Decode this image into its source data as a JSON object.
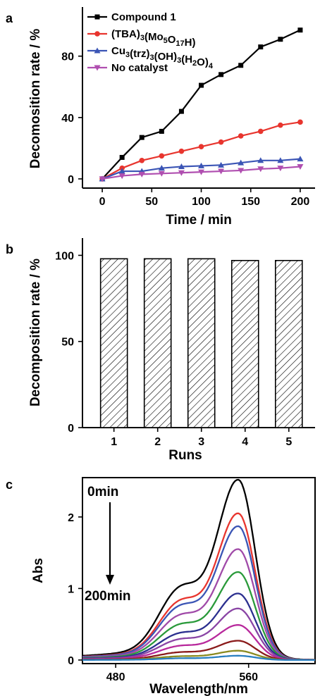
{
  "chart_data": [
    {
      "panel": "a",
      "type": "line",
      "xlabel": "Time / min",
      "ylabel": "Decomosition rate / %",
      "xlim": [
        -20,
        215
      ],
      "ylim": [
        -6,
        112
      ],
      "xticks": [
        0,
        50,
        100,
        150,
        200
      ],
      "yticks": [
        0,
        40,
        80
      ],
      "legend_position": "top-left",
      "series": [
        {
          "name": "Compound 1",
          "color": "#000000",
          "marker": "square",
          "x": [
            0,
            20,
            40,
            60,
            80,
            100,
            120,
            140,
            160,
            180,
            200
          ],
          "y": [
            0,
            14,
            27,
            31,
            44,
            61,
            68,
            74,
            86,
            91,
            97
          ]
        },
        {
          "name": "(TBA)3(Mo5O17H)",
          "color": "#e8352e",
          "marker": "circle",
          "x": [
            0,
            20,
            40,
            60,
            80,
            100,
            120,
            140,
            160,
            180,
            200
          ],
          "y": [
            0,
            7,
            12,
            15,
            18,
            21,
            24,
            28,
            31,
            35,
            37
          ]
        },
        {
          "name": "Cu3(trz)3(OH)3(H2O)4",
          "color": "#3b55b5",
          "marker": "triangle-up",
          "x": [
            0,
            20,
            40,
            60,
            80,
            100,
            120,
            140,
            160,
            180,
            200
          ],
          "y": [
            0,
            5,
            5,
            7,
            8,
            8.5,
            9,
            10.5,
            12,
            12,
            13
          ]
        },
        {
          "name": "No catalyst",
          "color": "#b04fb0",
          "marker": "triangle-down",
          "x": [
            0,
            20,
            40,
            60,
            80,
            100,
            120,
            140,
            160,
            180,
            200
          ],
          "y": [
            0,
            2,
            3,
            3.5,
            4,
            4.5,
            5,
            5.5,
            6.5,
            7,
            8
          ]
        }
      ]
    },
    {
      "panel": "b",
      "type": "bar",
      "xlabel": "Runs",
      "ylabel": "Decomposition rate / %",
      "categories": [
        "1",
        "2",
        "3",
        "4",
        "5"
      ],
      "values": [
        98,
        98,
        98,
        97,
        97
      ],
      "ylim": [
        0,
        110
      ],
      "yticks": [
        0,
        50,
        100
      ],
      "bar_fill": "hatched"
    },
    {
      "panel": "c",
      "type": "line",
      "xlabel": "Wavelength/nm",
      "ylabel": "Abs",
      "xlim": [
        460,
        600
      ],
      "ylim": [
        -0.05,
        2.55
      ],
      "xticks": [
        480,
        560
      ],
      "yticks": [
        0,
        1,
        2
      ],
      "annotations": [
        "0min",
        "200min"
      ],
      "peak_wavelength": 554,
      "shoulder_wavelength": 519,
      "series": [
        {
          "peak": 2.52,
          "color": "#000000"
        },
        {
          "peak": 2.05,
          "color": "#e8352e"
        },
        {
          "peak": 1.87,
          "color": "#3b55b5"
        },
        {
          "peak": 1.55,
          "color": "#a04aa8"
        },
        {
          "peak": 1.23,
          "color": "#2a9a3a"
        },
        {
          "peak": 0.93,
          "color": "#2b2f8f"
        },
        {
          "peak": 0.72,
          "color": "#8a45a5"
        },
        {
          "peak": 0.49,
          "color": "#b8299c"
        },
        {
          "peak": 0.27,
          "color": "#8a1a1a"
        },
        {
          "peak": 0.13,
          "color": "#8a8a20"
        },
        {
          "peak": 0.06,
          "color": "#2a7fc0"
        }
      ]
    }
  ]
}
